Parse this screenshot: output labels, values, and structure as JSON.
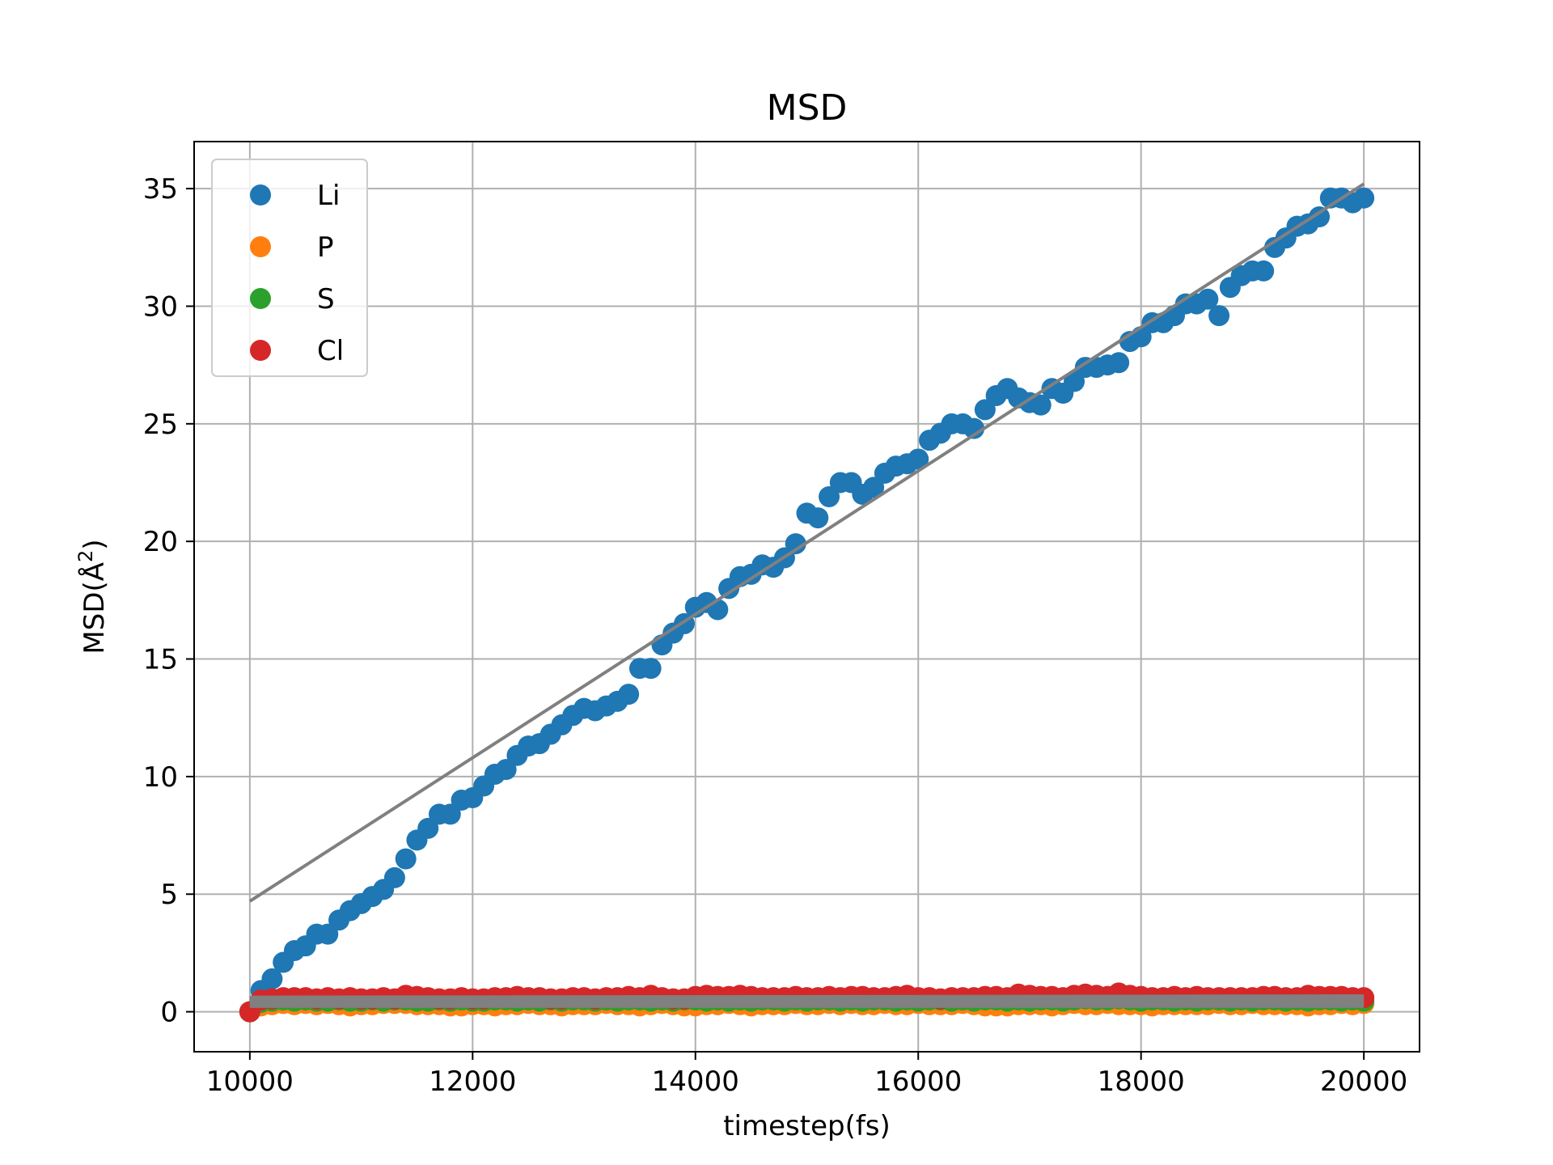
{
  "chart_data": {
    "type": "scatter",
    "title": "MSD",
    "xlabel": "timestep(fs)",
    "ylabel": "MSD(Å²)",
    "ylabel_parts": {
      "main": "MSD(Å",
      "sup": "2",
      "close": ")"
    },
    "xlim": [
      9500,
      20500
    ],
    "ylim": [
      -1.7,
      37
    ],
    "xticks": [
      10000,
      12000,
      14000,
      16000,
      18000,
      20000
    ],
    "yticks": [
      0,
      5,
      10,
      15,
      20,
      25,
      30,
      35
    ],
    "grid": true,
    "legend_position": "upper-left",
    "fit_color": "#808080",
    "series": [
      {
        "name": "Li",
        "color": "#1f77b4",
        "x": [
          10000,
          10100,
          10200,
          10300,
          10400,
          10500,
          10600,
          10700,
          10800,
          10900,
          11000,
          11100,
          11200,
          11300,
          11400,
          11500,
          11600,
          11700,
          11800,
          11900,
          12000,
          12100,
          12200,
          12300,
          12400,
          12500,
          12600,
          12700,
          12800,
          12900,
          13000,
          13100,
          13200,
          13300,
          13400,
          13500,
          13600,
          13700,
          13800,
          13900,
          14000,
          14100,
          14200,
          14300,
          14400,
          14500,
          14600,
          14700,
          14800,
          14900,
          15000,
          15100,
          15200,
          15300,
          15400,
          15500,
          15600,
          15700,
          15800,
          15900,
          16000,
          16100,
          16200,
          16300,
          16400,
          16500,
          16600,
          16700,
          16800,
          16900,
          17000,
          17100,
          17200,
          17300,
          17400,
          17500,
          17600,
          17700,
          17800,
          17900,
          18000,
          18100,
          18200,
          18300,
          18400,
          18500,
          18600,
          18700,
          18800,
          18900,
          19000,
          19100,
          19200,
          19300,
          19400,
          19500,
          19600,
          19700,
          19800,
          19900,
          20000
        ],
        "y": [
          0,
          0.9,
          1.4,
          2.1,
          2.6,
          2.8,
          3.3,
          3.3,
          3.9,
          4.3,
          4.6,
          4.9,
          5.2,
          5.7,
          6.5,
          7.3,
          7.8,
          8.4,
          8.4,
          9.0,
          9.1,
          9.6,
          10.1,
          10.3,
          10.9,
          11.3,
          11.4,
          11.8,
          12.2,
          12.6,
          12.9,
          12.8,
          13.0,
          13.2,
          13.5,
          14.6,
          14.6,
          15.6,
          16.1,
          16.5,
          17.2,
          17.4,
          17.1,
          18.0,
          18.5,
          18.6,
          19.0,
          18.9,
          19.3,
          19.9,
          21.2,
          21.0,
          21.9,
          22.5,
          22.5,
          22.0,
          22.3,
          22.9,
          23.2,
          23.3,
          23.5,
          24.3,
          24.6,
          25.0,
          25.0,
          24.8,
          25.6,
          26.2,
          26.5,
          26.1,
          25.9,
          25.8,
          26.5,
          26.3,
          26.8,
          27.4,
          27.4,
          27.5,
          27.6,
          28.5,
          28.7,
          29.3,
          29.3,
          29.6,
          30.1,
          30.1,
          30.3,
          29.6,
          30.8,
          31.3,
          31.5,
          31.5,
          32.5,
          32.9,
          33.4,
          33.5,
          33.8,
          34.6,
          34.6,
          34.4,
          34.6
        ]
      },
      {
        "name": "P",
        "color": "#ff7f0e",
        "x": [
          10000,
          10100,
          10200,
          10300,
          10400,
          10500,
          10600,
          10700,
          10800,
          10900,
          11000,
          11100,
          11200,
          11300,
          11400,
          11500,
          11600,
          11700,
          11800,
          11900,
          12000,
          12100,
          12200,
          12300,
          12400,
          12500,
          12600,
          12700,
          12800,
          12900,
          13000,
          13100,
          13200,
          13300,
          13400,
          13500,
          13600,
          13700,
          13800,
          13900,
          14000,
          14100,
          14200,
          14300,
          14400,
          14500,
          14600,
          14700,
          14800,
          14900,
          15000,
          15100,
          15200,
          15300,
          15400,
          15500,
          15600,
          15700,
          15800,
          15900,
          16000,
          16100,
          16200,
          16300,
          16400,
          16500,
          16600,
          16700,
          16800,
          16900,
          17000,
          17100,
          17200,
          17300,
          17400,
          17500,
          17600,
          17700,
          17800,
          17900,
          18000,
          18100,
          18200,
          18300,
          18400,
          18500,
          18600,
          18700,
          18800,
          18900,
          19000,
          19100,
          19200,
          19300,
          19400,
          19500,
          19600,
          19700,
          19800,
          19900,
          20000
        ],
        "y": [
          0,
          0.25,
          0.3,
          0.35,
          0.3,
          0.35,
          0.3,
          0.35,
          0.3,
          0.25,
          0.3,
          0.3,
          0.35,
          0.35,
          0.35,
          0.3,
          0.3,
          0.3,
          0.25,
          0.25,
          0.3,
          0.3,
          0.25,
          0.3,
          0.3,
          0.35,
          0.3,
          0.3,
          0.25,
          0.3,
          0.3,
          0.3,
          0.35,
          0.3,
          0.3,
          0.25,
          0.3,
          0.35,
          0.3,
          0.25,
          0.25,
          0.3,
          0.3,
          0.35,
          0.3,
          0.25,
          0.3,
          0.3,
          0.3,
          0.35,
          0.3,
          0.3,
          0.35,
          0.3,
          0.35,
          0.3,
          0.3,
          0.35,
          0.3,
          0.3,
          0.35,
          0.3,
          0.3,
          0.3,
          0.35,
          0.3,
          0.25,
          0.25,
          0.25,
          0.3,
          0.3,
          0.3,
          0.25,
          0.3,
          0.35,
          0.3,
          0.3,
          0.35,
          0.3,
          0.3,
          0.3,
          0.25,
          0.3,
          0.3,
          0.3,
          0.3,
          0.3,
          0.35,
          0.3,
          0.3,
          0.35,
          0.3,
          0.3,
          0.3,
          0.3,
          0.25,
          0.3,
          0.3,
          0.35,
          0.3,
          0.35
        ]
      },
      {
        "name": "S",
        "color": "#2ca02c",
        "x": [
          10000,
          10100,
          10200,
          10300,
          10400,
          10500,
          10600,
          10700,
          10800,
          10900,
          11000,
          11100,
          11200,
          11300,
          11400,
          11500,
          11600,
          11700,
          11800,
          11900,
          12000,
          12100,
          12200,
          12300,
          12400,
          12500,
          12600,
          12700,
          12800,
          12900,
          13000,
          13100,
          13200,
          13300,
          13400,
          13500,
          13600,
          13700,
          13800,
          13900,
          14000,
          14100,
          14200,
          14300,
          14400,
          14500,
          14600,
          14700,
          14800,
          14900,
          15000,
          15100,
          15200,
          15300,
          15400,
          15500,
          15600,
          15700,
          15800,
          15900,
          16000,
          16100,
          16200,
          16300,
          16400,
          16500,
          16600,
          16700,
          16800,
          16900,
          17000,
          17100,
          17200,
          17300,
          17400,
          17500,
          17600,
          17700,
          17800,
          17900,
          18000,
          18100,
          18200,
          18300,
          18400,
          18500,
          18600,
          18700,
          18800,
          18900,
          19000,
          19100,
          19200,
          19300,
          19400,
          19500,
          19600,
          19700,
          19800,
          19900,
          20000
        ],
        "y": [
          0,
          0.4,
          0.45,
          0.5,
          0.45,
          0.5,
          0.45,
          0.45,
          0.5,
          0.45,
          0.45,
          0.5,
          0.45,
          0.5,
          0.5,
          0.45,
          0.45,
          0.5,
          0.45,
          0.5,
          0.45,
          0.45,
          0.5,
          0.5,
          0.45,
          0.5,
          0.45,
          0.5,
          0.45,
          0.5,
          0.5,
          0.45,
          0.5,
          0.45,
          0.5,
          0.5,
          0.45,
          0.5,
          0.45,
          0.5,
          0.5,
          0.45,
          0.5,
          0.45,
          0.5,
          0.45,
          0.5,
          0.5,
          0.45,
          0.5,
          0.45,
          0.5,
          0.5,
          0.45,
          0.5,
          0.45,
          0.5,
          0.5,
          0.45,
          0.5,
          0.45,
          0.5,
          0.5,
          0.45,
          0.5,
          0.45,
          0.5,
          0.5,
          0.45,
          0.5,
          0.45,
          0.5,
          0.5,
          0.45,
          0.5,
          0.55,
          0.5,
          0.5,
          0.55,
          0.5,
          0.45,
          0.5,
          0.5,
          0.45,
          0.5,
          0.45,
          0.5,
          0.5,
          0.45,
          0.5,
          0.45,
          0.5,
          0.5,
          0.45,
          0.5,
          0.45,
          0.5,
          0.5,
          0.45,
          0.5,
          0.45
        ]
      },
      {
        "name": "Cl",
        "color": "#d62728",
        "x": [
          10000,
          10100,
          10200,
          10300,
          10400,
          10500,
          10600,
          10700,
          10800,
          10900,
          11000,
          11100,
          11200,
          11300,
          11400,
          11500,
          11600,
          11700,
          11800,
          11900,
          12000,
          12100,
          12200,
          12300,
          12400,
          12500,
          12600,
          12700,
          12800,
          12900,
          13000,
          13100,
          13200,
          13300,
          13400,
          13500,
          13600,
          13700,
          13800,
          13900,
          14000,
          14100,
          14200,
          14300,
          14400,
          14500,
          14600,
          14700,
          14800,
          14900,
          15000,
          15100,
          15200,
          15300,
          15400,
          15500,
          15600,
          15700,
          15800,
          15900,
          16000,
          16100,
          16200,
          16300,
          16400,
          16500,
          16600,
          16700,
          16800,
          16900,
          17000,
          17100,
          17200,
          17300,
          17400,
          17500,
          17600,
          17700,
          17800,
          17900,
          18000,
          18100,
          18200,
          18300,
          18400,
          18500,
          18600,
          18700,
          18800,
          18900,
          19000,
          19100,
          19200,
          19300,
          19400,
          19500,
          19600,
          19700,
          19800,
          19900,
          20000
        ],
        "y": [
          0,
          0.5,
          0.55,
          0.6,
          0.6,
          0.6,
          0.55,
          0.6,
          0.55,
          0.6,
          0.55,
          0.55,
          0.6,
          0.55,
          0.7,
          0.65,
          0.6,
          0.55,
          0.55,
          0.6,
          0.55,
          0.55,
          0.6,
          0.6,
          0.65,
          0.6,
          0.6,
          0.55,
          0.55,
          0.6,
          0.6,
          0.55,
          0.6,
          0.6,
          0.65,
          0.6,
          0.7,
          0.6,
          0.55,
          0.55,
          0.65,
          0.7,
          0.65,
          0.65,
          0.7,
          0.65,
          0.6,
          0.6,
          0.6,
          0.65,
          0.6,
          0.6,
          0.65,
          0.6,
          0.65,
          0.65,
          0.6,
          0.6,
          0.65,
          0.7,
          0.6,
          0.6,
          0.55,
          0.6,
          0.6,
          0.6,
          0.65,
          0.65,
          0.6,
          0.75,
          0.7,
          0.65,
          0.65,
          0.6,
          0.7,
          0.75,
          0.7,
          0.65,
          0.8,
          0.7,
          0.65,
          0.6,
          0.6,
          0.65,
          0.6,
          0.65,
          0.6,
          0.6,
          0.6,
          0.6,
          0.6,
          0.65,
          0.65,
          0.6,
          0.6,
          0.7,
          0.65,
          0.65,
          0.65,
          0.6,
          0.6
        ]
      }
    ],
    "fit_lines": [
      {
        "series": "Li",
        "x": [
          10000,
          20000
        ],
        "y": [
          4.7,
          35.2
        ]
      },
      {
        "series": "P",
        "x": [
          10000,
          20000
        ],
        "y": [
          0.3,
          0.3
        ]
      },
      {
        "series": "S",
        "x": [
          10000,
          20000
        ],
        "y": [
          0.45,
          0.47
        ]
      },
      {
        "series": "Cl",
        "x": [
          10000,
          20000
        ],
        "y": [
          0.55,
          0.6
        ]
      }
    ]
  }
}
